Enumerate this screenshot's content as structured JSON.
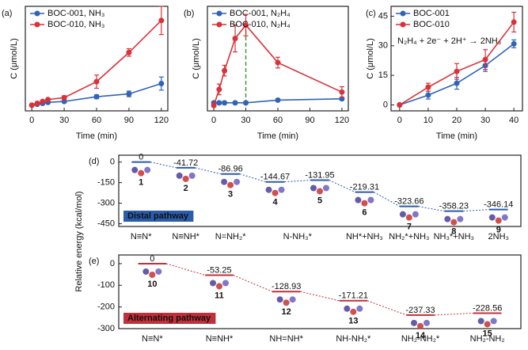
{
  "chart_data": [
    {
      "type": "line",
      "panel_label": "(a)",
      "ylabel": "C (μmol/L)",
      "xlabel": "Time (min)",
      "x": [
        0,
        5,
        10,
        15,
        30,
        60,
        90,
        120
      ],
      "xlim": [
        -6,
        126
      ],
      "xticks": [
        0,
        30,
        60,
        90,
        120
      ],
      "ylim": [
        -6,
        105
      ],
      "legend": "upper left",
      "series": [
        {
          "name": "BOC-001, NH₃",
          "color": "#2f64b8",
          "values": [
            0,
            1,
            2,
            3,
            4,
            9,
            12,
            23
          ],
          "errors": [
            0,
            1,
            1,
            1,
            1,
            2,
            3,
            7
          ]
        },
        {
          "name": "BOC-010, NH₃",
          "color": "#d9323a",
          "values": [
            0,
            2,
            4,
            6,
            8,
            25,
            56,
            90
          ],
          "errors": [
            0,
            1,
            1,
            1,
            2,
            7,
            4,
            15
          ]
        }
      ]
    },
    {
      "type": "line",
      "panel_label": "(b)",
      "ylabel": "C (μmol/L)",
      "xlabel": "Time (min)",
      "x": [
        0,
        5,
        10,
        20,
        30,
        60,
        120
      ],
      "xlim": [
        -6,
        126
      ],
      "xticks": [
        0,
        30,
        60,
        90,
        120
      ],
      "ylim": [
        -2,
        37
      ],
      "legend": "upper left",
      "reference_line": {
        "x": 30,
        "color": "#3a9a3a"
      },
      "series": [
        {
          "name": "BOC-001, N₂H₄",
          "color": "#2f64b8",
          "values": [
            1,
            1,
            1,
            1,
            1,
            2,
            2.5
          ],
          "errors": [
            0,
            0.5,
            0.5,
            0.5,
            0.5,
            0.5,
            0.5
          ]
        },
        {
          "name": "BOC-010, N₂H₄",
          "color": "#d9323a",
          "values": [
            0,
            6,
            13,
            25,
            30,
            16,
            5
          ],
          "errors": [
            0,
            2,
            2,
            5,
            4,
            2,
            2
          ]
        }
      ]
    },
    {
      "type": "line",
      "panel_label": "(c)",
      "ylabel": "C (μmol/L)",
      "xlabel": "Time (min)",
      "x": [
        0,
        10,
        20,
        30,
        40
      ],
      "xlim": [
        -3,
        43
      ],
      "xticks": [
        0,
        10,
        20,
        30,
        40
      ],
      "ylim": [
        -3,
        50
      ],
      "yticks": [
        0,
        15,
        30,
        45
      ],
      "legend": "upper left",
      "annotation": "N₂H₄ + 2e⁻ + 2H⁺ → 2NH₃",
      "series": [
        {
          "name": "BOC-001",
          "color": "#2f64b8",
          "values": [
            0,
            5,
            11,
            20,
            31
          ],
          "errors": [
            0,
            2,
            3,
            3,
            2
          ]
        },
        {
          "name": "BOC-010",
          "color": "#d9323a",
          "values": [
            0,
            9,
            17,
            23,
            42
          ],
          "errors": [
            0,
            2,
            4,
            5,
            5
          ]
        }
      ]
    },
    {
      "type": "energy",
      "panel_label": "(d)",
      "ylabel": "Relative energy (kcal/mol)",
      "pathway": "Distal pathway",
      "color": "#2a5caa",
      "categories": [
        "N≡N*",
        "N≡NH*",
        "N=NH₂*",
        "N-NH₃*",
        null,
        "NH*+NH₃",
        "NH₂*+NH₃",
        "NH₃*+NH₃",
        "2NH₃"
      ],
      "level_labels": [
        "1",
        "2",
        "3",
        "4",
        "5",
        "6",
        "7",
        "8",
        "9"
      ],
      "values": [
        0,
        -41.72,
        -86.96,
        -144.67,
        -131.95,
        -219.31,
        -323.66,
        -358.23,
        -346.14
      ],
      "ylim": [
        -470,
        50
      ],
      "yticks": [
        0,
        -150,
        -300,
        -450
      ]
    },
    {
      "type": "energy",
      "panel_label": "(e)",
      "pathway": "Alternating pathway",
      "color": "#c0303a",
      "categories": [
        "N≡N*",
        "N≡NH*",
        "NH=NH*",
        "NH-NH₂*",
        "NH₂-NH₂*",
        "NH₂-NH₂"
      ],
      "level_labels": [
        "10",
        "11",
        "12",
        "13",
        "14",
        "15"
      ],
      "values": [
        0,
        -53.25,
        -128.93,
        -171.21,
        -237.33,
        -228.56
      ],
      "ylim": [
        -300,
        40
      ],
      "yticks": [
        0,
        -100,
        -200,
        -300
      ]
    }
  ]
}
